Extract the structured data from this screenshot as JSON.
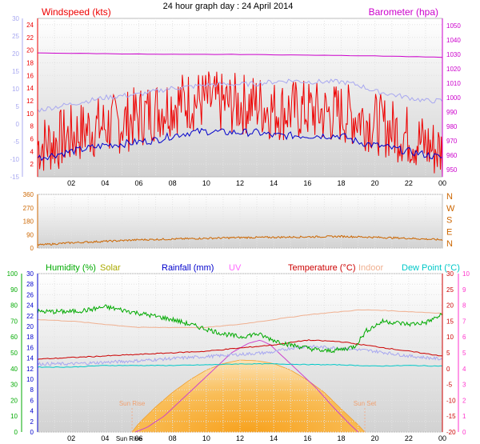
{
  "chart_data": [
    {
      "type": "line",
      "title": "24 hour graph day : 24 April 2014",
      "x_tick_labels": [
        "02",
        "04",
        "06",
        "08",
        "10",
        "12",
        "14",
        "16",
        "18",
        "20",
        "22",
        "00"
      ],
      "xlabel": "",
      "left_axis": {
        "label": "Windspeed (kts)",
        "ylim": [
          0,
          25
        ],
        "ticks": [
          2,
          4,
          6,
          8,
          10,
          12,
          14,
          16,
          18,
          20,
          22,
          24
        ]
      },
      "outer_left_axis": {
        "ylim": [
          -15,
          30
        ],
        "ticks": [
          -15,
          -10,
          -5,
          0,
          5,
          10,
          15,
          20,
          25,
          30
        ]
      },
      "right_axis": {
        "label": "Barometer (hpa)",
        "ylim": [
          945,
          1055
        ],
        "ticks": [
          950,
          960,
          970,
          980,
          990,
          1000,
          1010,
          1020,
          1030,
          1040,
          1050
        ]
      },
      "series": [
        {
          "name": "Windspeed (kts)",
          "color": "#ee0000",
          "axis": "left",
          "hours": [
            0,
            1,
            2,
            3,
            4,
            5,
            6,
            7,
            8,
            9,
            10,
            11,
            12,
            13,
            14,
            15,
            16,
            17,
            18,
            19,
            20,
            21,
            22,
            23,
            24
          ],
          "values": [
            5,
            5.5,
            6.5,
            7.5,
            8,
            8.5,
            9.5,
            10.5,
            11.5,
            12,
            12,
            11.5,
            11.5,
            11.5,
            10.5,
            10.5,
            10.5,
            10,
            10,
            9.5,
            8.5,
            7.5,
            6.5,
            5,
            4
          ],
          "spread": 5
        },
        {
          "name": "",
          "color": "#0000cc",
          "axis": "left",
          "hours": [
            0,
            1,
            2,
            3,
            4,
            5,
            6,
            7,
            8,
            9,
            10,
            11,
            12,
            13,
            14,
            15,
            16,
            17,
            18,
            19,
            20,
            21,
            22,
            23,
            24
          ],
          "values": [
            3,
            3.5,
            4,
            4.5,
            5,
            5.2,
            5.5,
            5.8,
            6.5,
            7,
            7.2,
            7,
            7,
            7,
            6.5,
            6.5,
            6.5,
            6.5,
            6.5,
            5.5,
            5,
            4.5,
            4,
            3.5,
            3
          ],
          "spread": 0.6
        },
        {
          "name": "",
          "color": "#a8a8f0",
          "axis": "left",
          "hours": [
            0,
            1,
            2,
            3,
            4,
            5,
            6,
            7,
            8,
            9,
            10,
            11,
            12,
            13,
            14,
            15,
            16,
            17,
            18,
            19,
            20,
            21,
            22,
            23,
            24
          ],
          "values": [
            10.5,
            11,
            11.5,
            12,
            12.5,
            12.8,
            13,
            13.5,
            14,
            14.2,
            14.5,
            14.6,
            14.6,
            14.7,
            15,
            15.2,
            15,
            15,
            15,
            14.5,
            13.5,
            13,
            12.5,
            12,
            12
          ],
          "spread": 0.4
        },
        {
          "name": "Barometer (hpa)",
          "color": "#cc00cc",
          "axis": "right",
          "hours": [
            0,
            4,
            8,
            12,
            16,
            20,
            24
          ],
          "values": [
            1031,
            1030.5,
            1030,
            1030,
            1029.5,
            1029,
            1028
          ],
          "spread": 0.1
        }
      ]
    },
    {
      "type": "line",
      "title": "",
      "left_axis": {
        "ylim": [
          0,
          360
        ],
        "ticks": [
          0,
          90,
          180,
          270,
          360
        ]
      },
      "right_axis": {
        "labels": [
          "N",
          "W",
          "S",
          "E",
          "N"
        ]
      },
      "series": [
        {
          "name": "",
          "color": "#cc6600",
          "hours": [
            0,
            2,
            4,
            6,
            8,
            10,
            12,
            14,
            16,
            18,
            20,
            22,
            24
          ],
          "values": [
            20,
            35,
            45,
            55,
            60,
            65,
            70,
            72,
            75,
            78,
            72,
            65,
            55
          ],
          "spread": 6
        }
      ]
    },
    {
      "type": "line",
      "title": "",
      "x_tick_labels": [
        "02",
        "04",
        "06",
        "08",
        "10",
        "12",
        "14",
        "16",
        "18",
        "20",
        "22",
        "00"
      ],
      "legend": [
        {
          "label": "Humidity (%)",
          "color": "#00aa00"
        },
        {
          "label": "Solar",
          "color": "#cccc00"
        },
        {
          "label": "Rainfall (mm)",
          "color": "#0000cc"
        },
        {
          "label": "UV",
          "color": "#ff66ff"
        },
        {
          "label": "Temperature (°C)",
          "color": "#cc0000"
        },
        {
          "label": "Indoor",
          "color": "#f0b090"
        },
        {
          "label": "Dew Point (°C)",
          "color": "#00c8c8"
        }
      ],
      "annotations": [
        "Sun Rise",
        "Sun Set",
        "Sun Rise"
      ],
      "sun_rise_hour": 5.6,
      "sun_set_hour": 19.4,
      "left_axis_humidity": {
        "ylim": [
          0,
          100
        ],
        "ticks": [
          0,
          10,
          20,
          30,
          40,
          50,
          60,
          70,
          80,
          90,
          100
        ]
      },
      "left_axis_rainfall": {
        "ylim": [
          0,
          30
        ],
        "ticks": [
          0,
          2,
          4,
          6,
          8,
          10,
          12,
          14,
          16,
          18,
          20,
          22,
          24,
          26,
          28,
          30
        ]
      },
      "right_axis_temperature": {
        "ylim": [
          -20,
          30
        ],
        "ticks": [
          -20,
          -15,
          -10,
          -5,
          0,
          5,
          10,
          15,
          20,
          25,
          30
        ]
      },
      "right_axis_uv": {
        "ylim": [
          0,
          10
        ],
        "ticks": [
          0,
          1,
          2,
          3,
          4,
          5,
          6,
          7,
          8,
          9,
          10
        ]
      },
      "series": [
        {
          "name": "Humidity (%)",
          "color": "#00aa00",
          "axis": "humidity",
          "hours": [
            0,
            1,
            2,
            3,
            4,
            5,
            6,
            7,
            8,
            9,
            10,
            11,
            12,
            13,
            14,
            15,
            16,
            17,
            18,
            18.8,
            19.5,
            20.5,
            22,
            23,
            24
          ],
          "values": [
            76,
            76,
            76,
            77,
            79,
            77,
            75,
            73,
            71,
            68,
            65,
            62,
            60,
            62,
            58,
            55,
            53,
            51,
            52,
            54,
            64,
            70,
            68,
            69,
            74
          ],
          "spread": 1.5
        },
        {
          "name": "Solar",
          "color": "#f0a030",
          "axis": "solar",
          "hours": [
            5.6,
            6,
            7,
            8,
            9,
            10,
            11,
            12,
            13,
            14,
            15,
            16,
            17,
            18,
            19,
            19.4
          ],
          "values": [
            0,
            0.12,
            0.35,
            0.55,
            0.72,
            0.86,
            0.95,
            1,
            0.99,
            0.95,
            0.86,
            0.72,
            0.55,
            0.32,
            0.1,
            0
          ],
          "spread": 0
        },
        {
          "name": "UV",
          "color": "#cc44cc",
          "axis": "uv",
          "hours": [
            5.8,
            6.5,
            7.5,
            8.5,
            9.5,
            10.5,
            11.5,
            12.5,
            13.2,
            13.8,
            14.5,
            15.5,
            16.5,
            17.5,
            18.5,
            19
          ],
          "values": [
            0,
            0.3,
            1,
            2,
            3,
            4,
            5,
            5.6,
            5.8,
            5.5,
            4.8,
            3.8,
            2.8,
            1.6,
            0.5,
            0
          ],
          "spread": 0
        },
        {
          "name": "Indoor",
          "color": "#f0b090",
          "axis": "temperature",
          "hours": [
            0,
            2,
            4,
            6,
            8,
            10,
            12,
            14,
            16,
            18,
            19,
            20,
            22,
            24
          ],
          "values": [
            15.5,
            15,
            14,
            13,
            13,
            13,
            14,
            15.5,
            17,
            18,
            18.5,
            18.5,
            18,
            17.5
          ],
          "spread": 0.1
        },
        {
          "name": "Temperature (°C)",
          "color": "#cc0000",
          "axis": "temperature",
          "hours": [
            0,
            2,
            4,
            6,
            8,
            10,
            12,
            14,
            16,
            18,
            20,
            22,
            24
          ],
          "values": [
            3,
            3.5,
            4,
            4.5,
            5,
            5.5,
            6.5,
            7.5,
            9,
            8.5,
            7,
            5.5,
            4
          ],
          "spread": 0.15
        },
        {
          "name": "",
          "color": "#a8a8f0",
          "axis": "temperature",
          "hours": [
            0,
            2,
            4,
            6,
            8,
            10,
            12,
            14,
            15,
            16,
            18,
            20,
            22,
            24
          ],
          "values": [
            1.5,
            1.5,
            2,
            2.5,
            3.2,
            3.8,
            4.5,
            5.2,
            6.5,
            7,
            6.5,
            5.5,
            4,
            3
          ],
          "spread": 0.5
        },
        {
          "name": "Dew Point (°C)",
          "color": "#00c8c8",
          "axis": "temperature",
          "hours": [
            0,
            2,
            4,
            6,
            8,
            10,
            12,
            14,
            16,
            18,
            20,
            22,
            24
          ],
          "values": [
            0.5,
            0.5,
            1,
            1,
            1,
            1.2,
            1.5,
            1.5,
            1.3,
            1.2,
            0.8,
            1,
            0.8
          ],
          "spread": 0.1
        }
      ]
    }
  ],
  "colors": {
    "red": "#ee0000",
    "magenta": "#cc00cc",
    "green": "#00aa00",
    "blue": "#0000cc",
    "olive": "#aaaa00",
    "orange": "#cc6600",
    "pink": "#ff33cc",
    "lavender": "#a8a8f0"
  }
}
